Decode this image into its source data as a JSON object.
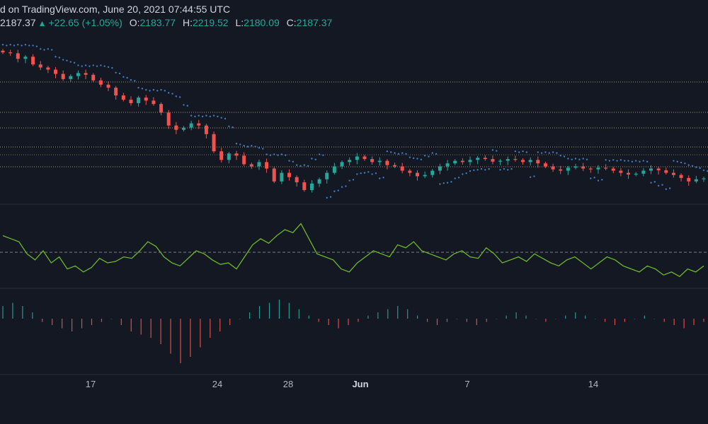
{
  "header": {
    "published": "d on TradingView.com, June 20, 2021 07:44:55 UTC",
    "price": "2187.37",
    "change_arrow": "▲",
    "change": "+22.65 (+1.05%)",
    "open_label": "O:",
    "open": "2183.77",
    "high_label": "H:",
    "high": "2219.52",
    "low_label": "L:",
    "low": "2180.09",
    "close_label": "C:",
    "close": "2187.37"
  },
  "x_axis_labels": [
    {
      "text": "17",
      "bold": false
    },
    {
      "text": "24",
      "bold": false
    },
    {
      "text": "28",
      "bold": false
    },
    {
      "text": "Jun",
      "bold": true
    },
    {
      "text": "7",
      "bold": false
    },
    {
      "text": "14",
      "bold": false
    }
  ],
  "colors": {
    "background": "#141823",
    "bull": "#26a69a",
    "bear": "#ef5350",
    "psar": "#3f7cc0",
    "rsi_line": "#6bb82c",
    "level_line": "#b8a873",
    "pane_border": "#2a2e39"
  },
  "chart_data": [
    {
      "type": "candlestick",
      "title": "",
      "overlay": "parabolic SAR (dots)",
      "horizontal_levels": 6,
      "close_values": [
        2480,
        2478,
        2465,
        2470,
        2452,
        2445,
        2440,
        2430,
        2418,
        2425,
        2432,
        2428,
        2415,
        2405,
        2398,
        2380,
        2370,
        2362,
        2375,
        2368,
        2360,
        2340,
        2310,
        2300,
        2305,
        2315,
        2310,
        2290,
        2250,
        2230,
        2245,
        2240,
        2220,
        2215,
        2225,
        2210,
        2180,
        2200,
        2190,
        2178,
        2160,
        2175,
        2185,
        2200,
        2215,
        2225,
        2230,
        2238,
        2232,
        2225,
        2228,
        2218,
        2215,
        2205,
        2200,
        2192,
        2195,
        2205,
        2215,
        2222,
        2228,
        2225,
        2230,
        2235,
        2232,
        2226,
        2228,
        2232,
        2230,
        2225,
        2230,
        2222,
        2215,
        2208,
        2205,
        2212,
        2215,
        2210,
        2208,
        2212,
        2210,
        2205,
        2200,
        2196,
        2198,
        2205,
        2210,
        2206,
        2200,
        2195,
        2188,
        2180,
        2185,
        2187
      ]
    },
    {
      "type": "line",
      "title": "",
      "midline": "dashed",
      "values": [
        62,
        60,
        58,
        50,
        46,
        52,
        44,
        48,
        40,
        42,
        38,
        41,
        47,
        44,
        45,
        48,
        47,
        52,
        58,
        55,
        48,
        44,
        42,
        47,
        52,
        50,
        46,
        43,
        44,
        40,
        48,
        56,
        60,
        57,
        62,
        66,
        64,
        70,
        60,
        50,
        48,
        46,
        40,
        38,
        44,
        48,
        52,
        50,
        48,
        56,
        54,
        58,
        52,
        50,
        48,
        46,
        50,
        52,
        48,
        47,
        54,
        50,
        44,
        46,
        48,
        45,
        50,
        47,
        44,
        42,
        46,
        48,
        44,
        40,
        44,
        48,
        46,
        42,
        40,
        38,
        42,
        40,
        36,
        38,
        35,
        40,
        38,
        42
      ]
    },
    {
      "type": "bar",
      "title": "",
      "zero_line": true,
      "values": [
        4,
        5,
        4,
        2,
        -1,
        -2,
        -3,
        -4,
        -3,
        -2,
        -1,
        0,
        -2,
        -4,
        -5,
        -6,
        -8,
        -11,
        -14,
        -12,
        -9,
        -6,
        -4,
        -2,
        0,
        2,
        4,
        5,
        6,
        5,
        3,
        1,
        -1,
        -2,
        -3,
        -2,
        -1,
        1,
        2,
        3,
        4,
        3,
        1,
        -1,
        -2,
        -1,
        0,
        -1,
        -2,
        -1,
        0,
        1,
        2,
        1,
        0,
        -1,
        0,
        1,
        2,
        1,
        0,
        -1,
        -2,
        -1,
        0,
        1,
        0,
        -1,
        -2,
        -3,
        -2,
        -1
      ]
    }
  ]
}
